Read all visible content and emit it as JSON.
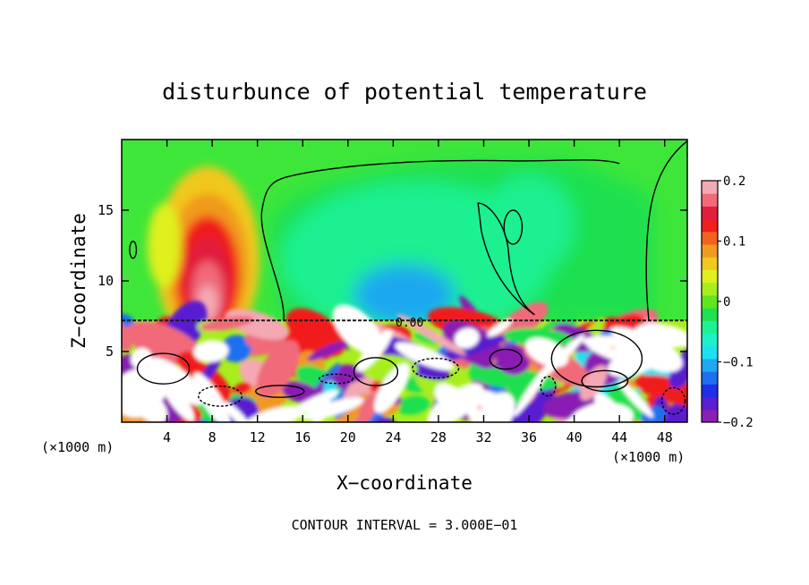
{
  "chart_data": {
    "type": "heatmap",
    "title": "disturbunce of potential temperature",
    "xlabel": "X−coordinate",
    "ylabel": "Z−coordinate",
    "x_unit": "(×1000 m)",
    "x_unit_right": "(×1000 m)",
    "xlim": [
      0,
      50
    ],
    "ylim": [
      0,
      20
    ],
    "x_ticks": [
      4,
      8,
      12,
      16,
      20,
      24,
      28,
      32,
      36,
      40,
      44,
      48
    ],
    "y_ticks": [
      5,
      10,
      15
    ],
    "colorbar": {
      "range": [
        -0.2,
        0.2
      ],
      "tick_values": [
        0.2,
        0.1,
        0,
        -0.1,
        -0.2
      ],
      "tick_labels": [
        "0.2",
        "0.1",
        "0",
        "−0.1",
        "−0.2"
      ],
      "colors": [
        "#8a1fb4",
        "#5a1fd0",
        "#1f2ee8",
        "#1f6ff0",
        "#1fa8f0",
        "#1fe0f0",
        "#1ff0c8",
        "#1ff090",
        "#1fe050",
        "#60e61f",
        "#a8ee1f",
        "#e0f01f",
        "#f0c81f",
        "#f09a1f",
        "#f0641f",
        "#f01f1f",
        "#e01f3c",
        "#f06a7a",
        "#f4a8b4"
      ]
    },
    "contour_label": "0.00",
    "contour_interval_text": "CONTOUR INTERVAL = 3.000E−01",
    "features": [
      {
        "kind": "warm_plume",
        "x": 7.5,
        "z": 10.5,
        "value": 0.2
      },
      {
        "kind": "cool_region",
        "x": 24.5,
        "z": 10.5,
        "value": -0.05
      },
      {
        "kind": "cool_core",
        "x": 25,
        "z": 8.5,
        "value": -0.1
      },
      {
        "kind": "turbulent_layer",
        "z_range": [
          0,
          7.2
        ],
        "value_range": [
          -0.2,
          0.2
        ]
      }
    ]
  }
}
